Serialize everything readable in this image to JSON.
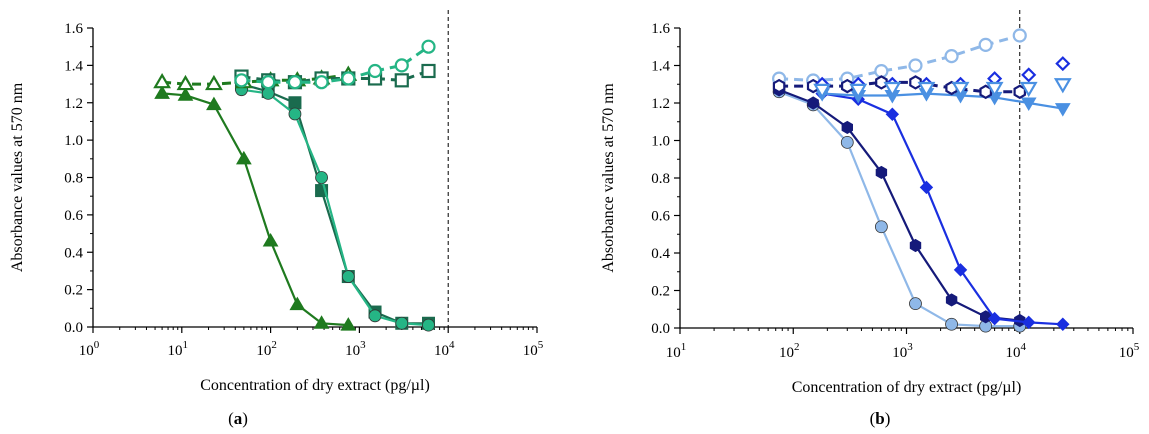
{
  "figure": {
    "panels": [
      {
        "id": "a",
        "panel_label_open": "(",
        "panel_label_letter": "a",
        "panel_label_close": ")"
      },
      {
        "id": "b",
        "panel_label_open": "(",
        "panel_label_letter": "b",
        "panel_label_close": ")"
      }
    ]
  },
  "chart_data": [
    {
      "type": "scatter",
      "panel": "a",
      "xlabel": "Concentration of dry extract (pg/µl)",
      "ylabel": "Absorbance values at 570 nm",
      "xscale": "log",
      "xlim": [
        1,
        100000
      ],
      "ylim": [
        0,
        1.6
      ],
      "xticks": [
        1,
        10,
        100,
        1000,
        10000,
        100000
      ],
      "xtick_labels": [
        {
          "base": "10",
          "exp": "0"
        },
        {
          "base": "10",
          "exp": "1"
        },
        {
          "base": "10",
          "exp": "2"
        },
        {
          "base": "10",
          "exp": "3"
        },
        {
          "base": "10",
          "exp": "4"
        },
        {
          "base": "10",
          "exp": "5"
        }
      ],
      "yticks": [
        "0.0",
        "0.2",
        "0.4",
        "0.6",
        "0.8",
        "1.0",
        "1.2",
        "1.4",
        "1.6"
      ],
      "reference_line_x": 10000,
      "grid": false,
      "series": [
        {
          "marker": "triangle",
          "filled": true,
          "color": "#1f7a1f",
          "line": "solid",
          "x": [
            6,
            11,
            23,
            50,
            100,
            200,
            375,
            750
          ],
          "y": [
            1.25,
            1.24,
            1.19,
            0.9,
            0.46,
            0.12,
            0.02,
            0.01
          ]
        },
        {
          "marker": "square",
          "filled": true,
          "color": "#1a6b4e",
          "line": "solid",
          "x": [
            47,
            94,
            188,
            375,
            750,
            1500,
            3000,
            6000
          ],
          "y": [
            1.3,
            1.26,
            1.2,
            0.73,
            0.27,
            0.08,
            0.02,
            0.02
          ]
        },
        {
          "marker": "circle",
          "filled": true,
          "color": "#25b585",
          "line": "solid",
          "x": [
            47,
            94,
            188,
            375,
            750,
            1500,
            3000,
            6000
          ],
          "y": [
            1.27,
            1.25,
            1.14,
            0.8,
            0.27,
            0.06,
            0.02,
            0.01
          ]
        },
        {
          "marker": "triangle",
          "filled": false,
          "color": "#1f7a1f",
          "line": "dashed",
          "x": [
            6,
            11,
            23,
            50,
            100,
            200,
            375,
            750
          ],
          "y": [
            1.31,
            1.3,
            1.3,
            1.31,
            1.32,
            1.32,
            1.33,
            1.35
          ]
        },
        {
          "marker": "square",
          "filled": false,
          "color": "#1a6b4e",
          "line": "dashed",
          "x": [
            47,
            94,
            188,
            375,
            750,
            1500,
            3000,
            6000
          ],
          "y": [
            1.34,
            1.32,
            1.31,
            1.33,
            1.33,
            1.33,
            1.32,
            1.37
          ]
        },
        {
          "marker": "circle",
          "filled": false,
          "color": "#25b585",
          "line": "dashed",
          "x": [
            47,
            94,
            188,
            375,
            750,
            1500,
            3000,
            6000
          ],
          "y": [
            1.32,
            1.31,
            1.31,
            1.31,
            1.33,
            1.37,
            1.4,
            1.5
          ]
        }
      ]
    },
    {
      "type": "scatter",
      "panel": "b",
      "xlabel": "Concentration of dry extract (pg/µl)",
      "ylabel": "Absorbance values at 570 nm",
      "xscale": "log",
      "xlim": [
        10,
        100000
      ],
      "ylim": [
        0,
        1.6
      ],
      "xticks": [
        10,
        100,
        1000,
        10000,
        100000
      ],
      "xtick_labels": [
        {
          "base": "10",
          "exp": "1"
        },
        {
          "base": "10",
          "exp": "2"
        },
        {
          "base": "10",
          "exp": "3"
        },
        {
          "base": "10",
          "exp": "4"
        },
        {
          "base": "10",
          "exp": "5"
        }
      ],
      "yticks": [
        "0.0",
        "0.2",
        "0.4",
        "0.6",
        "0.8",
        "1.0",
        "1.2",
        "1.4",
        "1.6"
      ],
      "reference_line_x": 10000,
      "grid": false,
      "series": [
        {
          "marker": "circle",
          "filled": true,
          "color": "#8fb8e8",
          "line": "solid",
          "x": [
            75,
            150,
            300,
            600,
            1200,
            2500,
            5000,
            10000
          ],
          "y": [
            1.26,
            1.19,
            0.99,
            0.54,
            0.13,
            0.02,
            0.01,
            0.01
          ]
        },
        {
          "marker": "hexagon",
          "filled": true,
          "color": "#151a7a",
          "line": "solid",
          "x": [
            75,
            150,
            300,
            600,
            1200,
            2500,
            5000,
            10000
          ],
          "y": [
            1.27,
            1.2,
            1.07,
            0.83,
            0.44,
            0.15,
            0.06,
            0.04
          ]
        },
        {
          "marker": "diamond",
          "filled": true,
          "color": "#1a2fe0",
          "line": "solid",
          "x": [
            180,
            375,
            750,
            1500,
            3000,
            6000,
            12000,
            24000
          ],
          "y": [
            1.25,
            1.22,
            1.14,
            0.75,
            0.31,
            0.05,
            0.03,
            0.02
          ]
        },
        {
          "marker": "triangle-down",
          "filled": true,
          "color": "#4a90e2",
          "line": "solid",
          "x": [
            180,
            375,
            750,
            1500,
            3000,
            6000,
            12000,
            24000
          ],
          "y": [
            1.25,
            1.24,
            1.24,
            1.25,
            1.24,
            1.23,
            1.2,
            1.17
          ]
        },
        {
          "marker": "circle",
          "filled": false,
          "color": "#8fb8e8",
          "line": "dashed",
          "x": [
            75,
            150,
            300,
            600,
            1200,
            2500,
            5000,
            10000
          ],
          "y": [
            1.33,
            1.32,
            1.33,
            1.37,
            1.4,
            1.45,
            1.51,
            1.56
          ]
        },
        {
          "marker": "hexagon",
          "filled": false,
          "color": "#151a7a",
          "line": "dashed",
          "x": [
            75,
            150,
            300,
            600,
            1200,
            2500,
            5000,
            10000
          ],
          "y": [
            1.29,
            1.29,
            1.29,
            1.31,
            1.31,
            1.28,
            1.26,
            1.26
          ]
        },
        {
          "marker": "diamond",
          "filled": false,
          "color": "#1a2fe0",
          "line": "none",
          "x": [
            180,
            375,
            750,
            1500,
            3000,
            6000,
            12000,
            24000
          ],
          "y": [
            1.3,
            1.3,
            1.3,
            1.3,
            1.3,
            1.33,
            1.35,
            1.41
          ]
        },
        {
          "marker": "triangle-down",
          "filled": false,
          "color": "#4a90e2",
          "line": "none",
          "x": [
            180,
            375,
            750,
            1500,
            3000,
            6000,
            12000,
            24000
          ],
          "y": [
            1.27,
            1.27,
            1.28,
            1.28,
            1.28,
            1.28,
            1.28,
            1.3
          ]
        }
      ]
    }
  ]
}
